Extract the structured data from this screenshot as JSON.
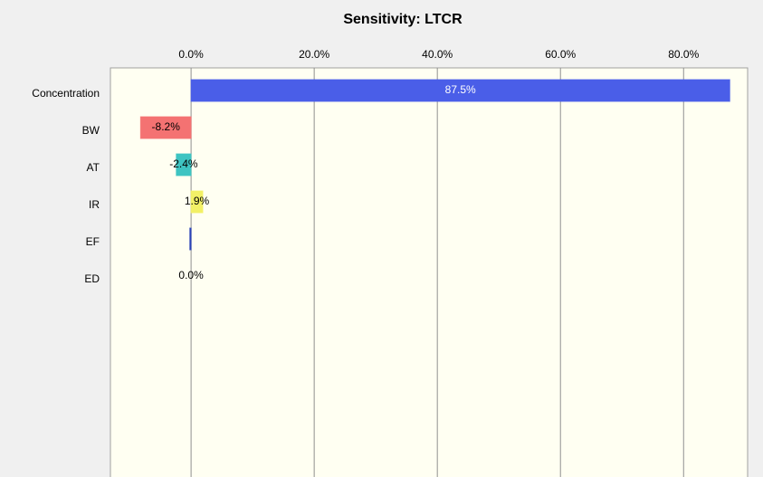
{
  "chart_data": {
    "type": "hbar",
    "title": "Sensitivity: LTCR",
    "categories": [
      "Concentration",
      "BW",
      "AT",
      "IR",
      "EF",
      "ED"
    ],
    "values": [
      87.5,
      -8.2,
      -2.4,
      1.9,
      -0.2,
      0.0
    ],
    "value_labels": [
      "87.5%",
      "-8.2%",
      "-2.4%",
      "1.9%",
      null,
      "0.0%"
    ],
    "colors": [
      "#4a5ee8",
      "#f47272",
      "#3ec4c2",
      "#f2f066",
      "#2a42b8",
      "#4a5ee8"
    ],
    "xlim": [
      -13.1,
      90.4
    ],
    "xticks": [
      {
        "value": 0,
        "label": "0.0%"
      },
      {
        "value": 20,
        "label": "20.0%"
      },
      {
        "value": 40,
        "label": "40.0%"
      },
      {
        "value": 60,
        "label": "60.0%"
      },
      {
        "value": 80,
        "label": "80.0%"
      }
    ],
    "grid": true
  }
}
